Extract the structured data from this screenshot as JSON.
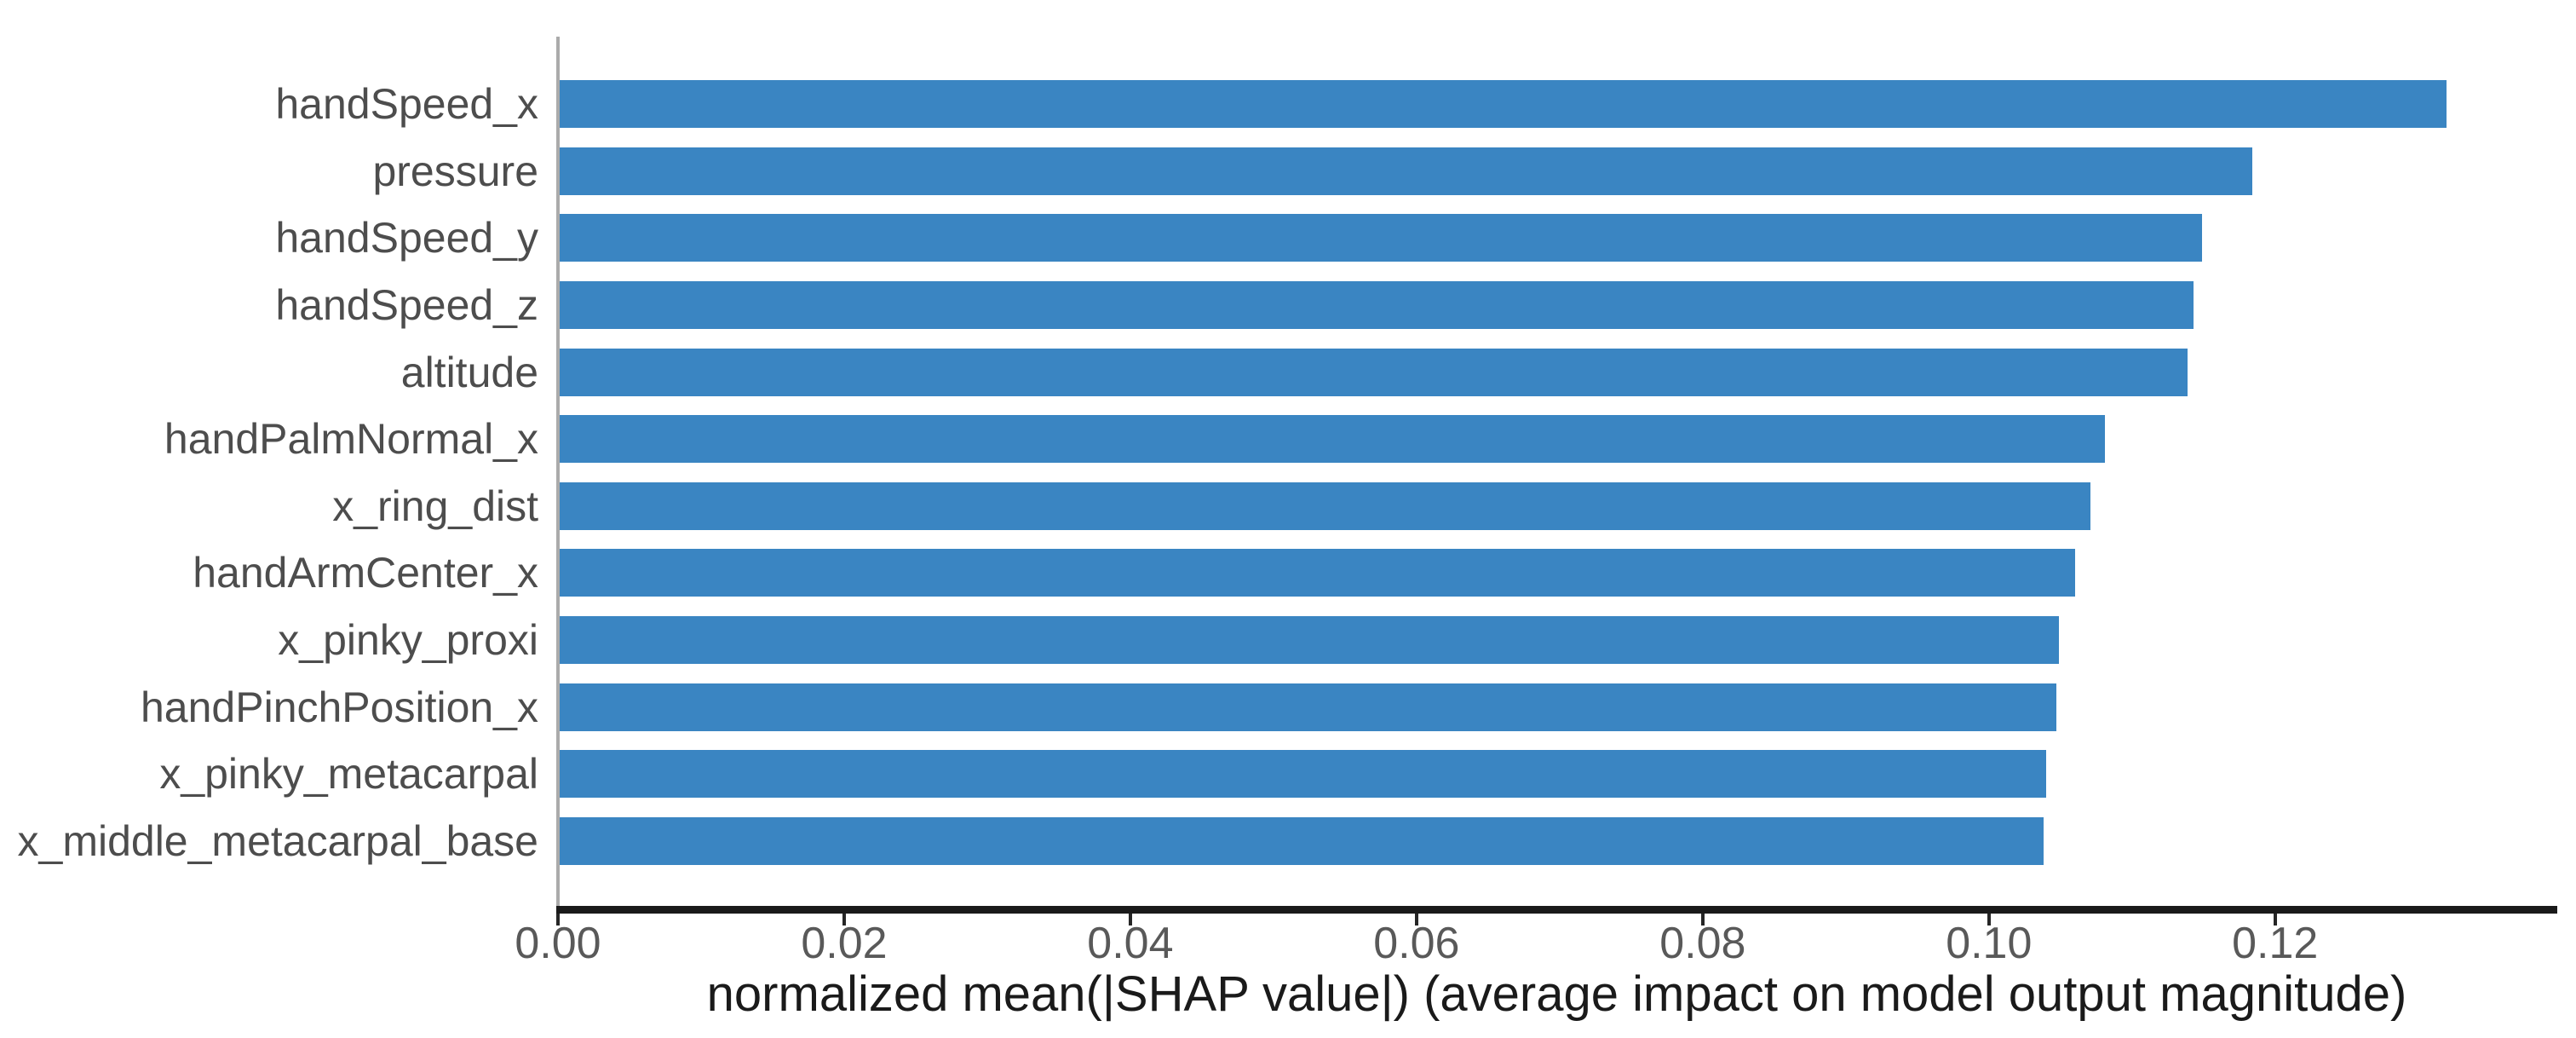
{
  "figure": {
    "background": "#ffffff",
    "bar_color": "#3a85c2",
    "y_spine_color": "#ababab",
    "x_axis_color": "#1a1a1a",
    "tick_mark_color": "#262626",
    "tick_label_color": "#595959",
    "y_label_color": "#4d4d4d",
    "xlabel_color": "#1a1a1a"
  },
  "chart_data": {
    "type": "bar",
    "orientation": "horizontal",
    "title": "",
    "xlabel": "normalized mean(|SHAP value|) (average impact on model output magnitude)",
    "ylabel": "",
    "categories": [
      "handSpeed_x",
      "pressure",
      "handSpeed_y",
      "handSpeed_z",
      "altitude",
      "handPalmNormal_x",
      "x_ring_dist",
      "handArmCenter_x",
      "x_pinky_proxi",
      "handPinchPosition_x",
      "x_pinky_metacarpal",
      "x_middle_metacarpal_base"
    ],
    "values": [
      0.132,
      0.1184,
      0.1149,
      0.1143,
      0.1139,
      0.1081,
      0.1071,
      0.106,
      0.1049,
      0.1047,
      0.104,
      0.1038
    ],
    "xlim": [
      0,
      0.1396
    ],
    "x_ticks": [
      0.0,
      0.02,
      0.04,
      0.06,
      0.08,
      0.1,
      0.12
    ],
    "x_tick_labels": [
      "0.00",
      "0.02",
      "0.04",
      "0.06",
      "0.08",
      "0.10",
      "0.12"
    ],
    "grid": false,
    "legend": null
  }
}
